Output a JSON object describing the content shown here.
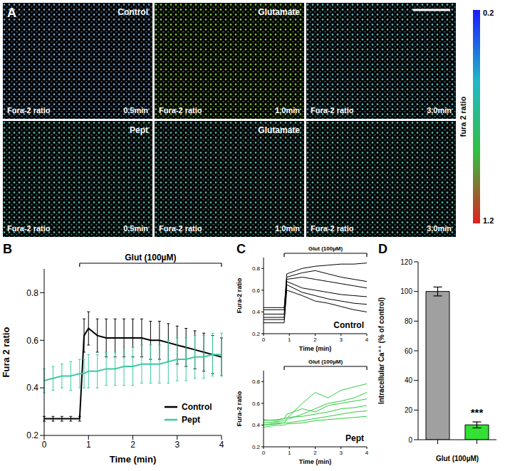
{
  "panel_A": {
    "panel": "A",
    "images": [
      {
        "title": "Control",
        "caption": "Fura-2 ratio",
        "time": "0.5min",
        "color": "#7fb2e0"
      },
      {
        "title": "Glutamate",
        "caption": "Fura-2 ratio",
        "time": "1.0min",
        "color": "#8fd64a"
      },
      {
        "caption": "Fura-2 ratio",
        "time": "3.0min",
        "color": "#68c6cf"
      },
      {
        "title": "Pept",
        "caption": "Fura-2 ratio",
        "time": "0.5min",
        "color": "#5cc4b8"
      },
      {
        "title": "Glutamate",
        "caption": "Fura-2 ratio",
        "time": "1.0min",
        "color": "#5cc4b8"
      },
      {
        "caption": "Fura-2 ratio",
        "time": "3.0min",
        "color": "#5cc4b8"
      }
    ],
    "colorbar": {
      "label": "fura 2 ratio",
      "range": [
        0.2,
        1.2
      ],
      "ticks": [
        0.2,
        1.2
      ],
      "colors": [
        "#1a1aff",
        "#20b8c8",
        "#30c040",
        "#e02020"
      ]
    }
  },
  "chart_data": [
    {
      "panel": "B",
      "type": "line",
      "x": [
        0,
        0.2,
        0.4,
        0.6,
        0.8,
        0.9,
        1.0,
        1.2,
        1.4,
        1.6,
        1.8,
        2.0,
        2.2,
        2.4,
        2.6,
        2.8,
        3.0,
        3.2,
        3.4,
        3.6,
        3.8,
        4.0
      ],
      "xlim": [
        0,
        4
      ],
      "xticks": [
        0,
        1,
        2,
        3,
        4
      ],
      "ylim": [
        0.2,
        0.9
      ],
      "yticks": [
        0.2,
        0.4,
        0.6,
        0.8
      ],
      "xlabel": "Time (min)",
      "ylabel": "Fura 2 ratio",
      "legend": "lower right",
      "annotations": [
        {
          "text": "Glut (100µM)",
          "x": [
            0.8,
            4
          ]
        }
      ],
      "series": [
        {
          "name": "Control",
          "color": "#000000",
          "values": [
            0.27,
            0.27,
            0.27,
            0.27,
            0.27,
            0.62,
            0.65,
            0.62,
            0.61,
            0.61,
            0.61,
            0.61,
            0.61,
            0.6,
            0.6,
            0.59,
            0.58,
            0.57,
            0.56,
            0.55,
            0.54,
            0.53
          ],
          "errors": [
            0.01,
            0.01,
            0.01,
            0.01,
            0.01,
            0.07,
            0.07,
            0.07,
            0.08,
            0.08,
            0.08,
            0.08,
            0.08,
            0.08,
            0.08,
            0.08,
            0.08,
            0.08,
            0.08,
            0.08,
            0.08,
            0.08
          ]
        },
        {
          "name": "Pept",
          "color": "#3cc9a3",
          "values": [
            0.43,
            0.44,
            0.45,
            0.45,
            0.46,
            0.46,
            0.47,
            0.47,
            0.48,
            0.48,
            0.49,
            0.49,
            0.5,
            0.5,
            0.5,
            0.51,
            0.52,
            0.52,
            0.53,
            0.53,
            0.54,
            0.54
          ],
          "errors": [
            0.05,
            0.05,
            0.05,
            0.06,
            0.06,
            0.06,
            0.07,
            0.07,
            0.07,
            0.07,
            0.08,
            0.08,
            0.08,
            0.08,
            0.08,
            0.09,
            0.09,
            0.09,
            0.09,
            0.09,
            0.09,
            0.09
          ]
        }
      ]
    },
    {
      "panel": "C",
      "type": "line",
      "label": "Control",
      "x": [
        0,
        0.5,
        0.8,
        0.9,
        1.5,
        2,
        2.5,
        3,
        3.5,
        4
      ],
      "xlim": [
        0,
        4
      ],
      "xticks": [
        0,
        1,
        2,
        3,
        4
      ],
      "ylim": [
        0.2,
        0.9
      ],
      "yticks": [
        0.2,
        0.4,
        0.6,
        0.8
      ],
      "xlabel": "Time (min)",
      "ylabel": "Fura-2 ratio",
      "annotations": [
        {
          "text": "Glut (100µM)",
          "x": [
            0.8,
            4
          ]
        }
      ],
      "series": [
        {
          "color": "#000000",
          "values": [
            0.42,
            0.42,
            0.42,
            0.75,
            0.8,
            0.82,
            0.83,
            0.84,
            0.84,
            0.85
          ]
        },
        {
          "color": "#000000",
          "values": [
            0.38,
            0.38,
            0.38,
            0.7,
            0.72,
            0.7,
            0.68,
            0.66,
            0.64,
            0.62
          ]
        },
        {
          "color": "#000000",
          "values": [
            0.35,
            0.35,
            0.35,
            0.68,
            0.62,
            0.6,
            0.58,
            0.56,
            0.55,
            0.54
          ]
        },
        {
          "color": "#000000",
          "values": [
            0.33,
            0.33,
            0.33,
            0.65,
            0.58,
            0.55,
            0.52,
            0.5,
            0.48,
            0.47
          ]
        },
        {
          "color": "#000000",
          "values": [
            0.3,
            0.3,
            0.3,
            0.6,
            0.55,
            0.5,
            0.48,
            0.45,
            0.42,
            0.4
          ]
        },
        {
          "color": "#000000",
          "values": [
            0.44,
            0.44,
            0.44,
            0.72,
            0.76,
            0.78,
            0.75,
            0.72,
            0.7,
            0.68
          ]
        }
      ]
    },
    {
      "type": "line",
      "label": "Pept",
      "x": [
        0,
        0.5,
        0.8,
        0.9,
        1.5,
        2,
        2.5,
        3,
        3.5,
        4
      ],
      "xlim": [
        0,
        4
      ],
      "xticks": [
        0,
        1,
        2,
        3,
        4
      ],
      "ylim": [
        0.2,
        0.9
      ],
      "yticks": [
        0.2,
        0.4,
        0.6,
        0.8
      ],
      "xlabel": "Time (min)",
      "ylabel": "Fura-2 ratio",
      "annotations": [
        {
          "text": "Glut (100µM)",
          "x": [
            0.8,
            4
          ]
        }
      ],
      "series": [
        {
          "color": "#2ecc40",
          "values": [
            0.4,
            0.42,
            0.42,
            0.45,
            0.5,
            0.55,
            0.6,
            0.62,
            0.65,
            0.7
          ]
        },
        {
          "color": "#2ecc40",
          "values": [
            0.45,
            0.44,
            0.46,
            0.47,
            0.48,
            0.5,
            0.52,
            0.55,
            0.56,
            0.58
          ]
        },
        {
          "color": "#2ecc40",
          "values": [
            0.42,
            0.43,
            0.44,
            0.46,
            0.6,
            0.7,
            0.65,
            0.72,
            0.75,
            0.78
          ]
        },
        {
          "color": "#2ecc40",
          "values": [
            0.38,
            0.4,
            0.4,
            0.41,
            0.42,
            0.44,
            0.45,
            0.46,
            0.47,
            0.48
          ]
        },
        {
          "color": "#2ecc40",
          "values": [
            0.44,
            0.45,
            0.46,
            0.5,
            0.55,
            0.52,
            0.58,
            0.6,
            0.62,
            0.64
          ]
        },
        {
          "color": "#2ecc40",
          "values": [
            0.4,
            0.41,
            0.42,
            0.42,
            0.44,
            0.46,
            0.48,
            0.5,
            0.52,
            0.53
          ]
        }
      ]
    },
    {
      "panel": "D",
      "type": "bar",
      "categories": [
        null,
        null
      ],
      "values": [
        100,
        10
      ],
      "errors": [
        3,
        2
      ],
      "colors": [
        "#a0a0a0",
        "#33e033"
      ],
      "ylim": [
        0,
        120
      ],
      "yticks": [
        0,
        20,
        40,
        60,
        80,
        100,
        120
      ],
      "xlabel": "Glut (100µM)",
      "ylabel": "Intracellular Ca⁺⁺ (% of control)",
      "annotations": [
        {
          "text": "***",
          "category": 1
        }
      ]
    }
  ]
}
